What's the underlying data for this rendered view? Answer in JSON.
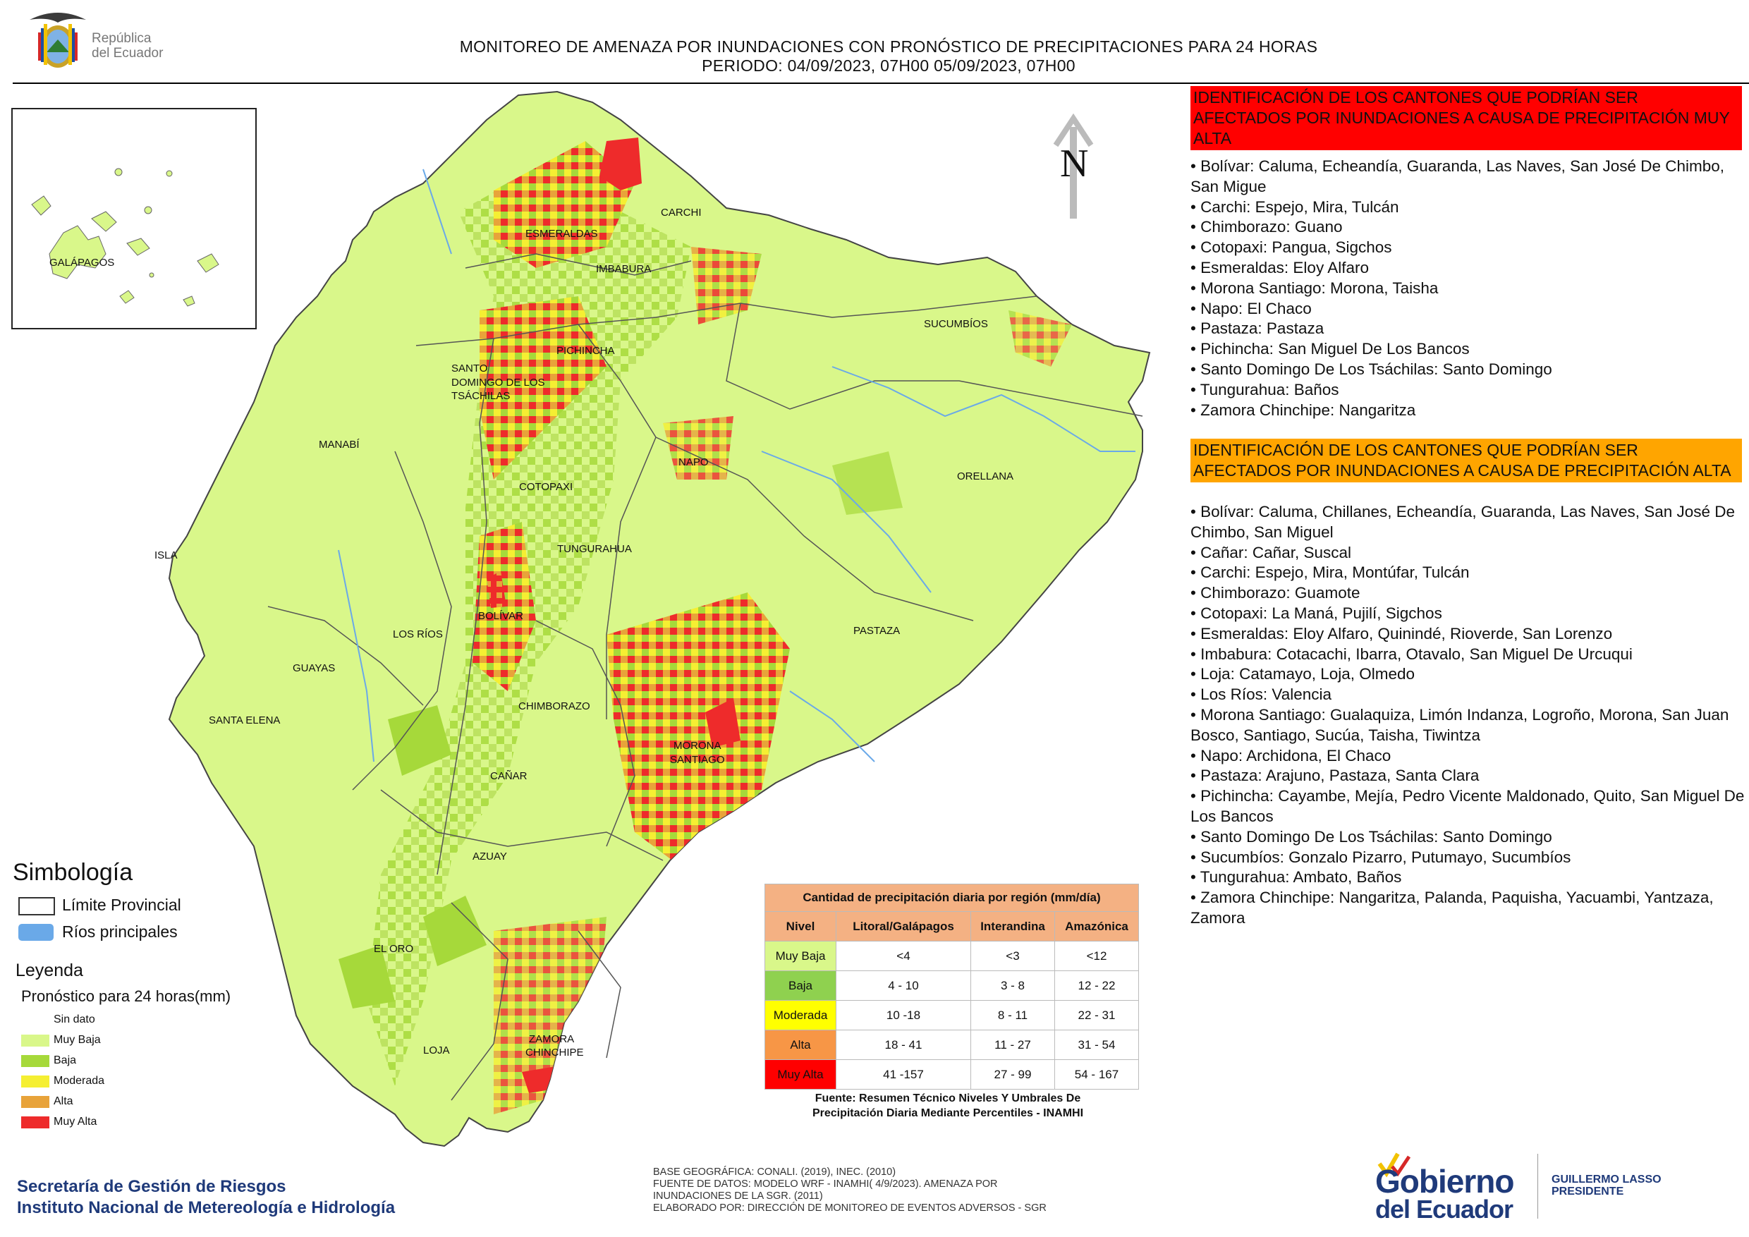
{
  "header": {
    "logo_text_line1": "República",
    "logo_text_line2": "del Ecuador",
    "title_line1": "MONITOREO DE AMENAZA POR INUNDACIONES  CON PRONÓSTICO DE  PRECIPITACIONES PARA 24 HORAS",
    "title_line2": "PERIODO: 04/09/2023, 07H00 05/09/2023, 07H00"
  },
  "map": {
    "north_label": "N",
    "inset_label": "GALÁPAGOS",
    "provinces": {
      "carchi": "CARCHI",
      "esmeraldas": "ESMERALDAS",
      "imbabura": "IMBABURA",
      "sucumbios": "SUCUMBÍOS",
      "pichincha": "PICHINCHA",
      "santo_domingo_1": "SANTO",
      "santo_domingo_2": "DOMINGO DE LOS",
      "santo_domingo_3": "TSÁCHILAS",
      "manabi": "MANABÍ",
      "napo": "NAPO",
      "orellana": "ORELLANA",
      "cotopaxi": "COTOPAXI",
      "isla": "ISLA",
      "tungurahua": "TUNGURAHUA",
      "bolivar": "BOLÍVAR",
      "los_rios": "LOS RÍOS",
      "guayas": "GUAYAS",
      "pastaza": "PASTAZA",
      "chimborazo": "CHIMBORAZO",
      "santa_elena": "SANTA ELENA",
      "morona_1": "MORONA",
      "morona_2": "SANTIAGO",
      "canar": "CAÑAR",
      "azuay": "AZUAY",
      "el_oro": "EL ORO",
      "zamora_1": "ZAMORA",
      "zamora_2": "CHINCHIPE",
      "loja": "LOJA"
    },
    "colors": {
      "muy_baja": "#d9f78a",
      "baja": "#a6d93a",
      "moderada": "#f5ef32",
      "alta": "#e8a33a",
      "muy_alta": "#ee2b2b",
      "river": "#6aa9e8",
      "border": "#555555"
    }
  },
  "simbologia": {
    "title": "Simbología",
    "limite": "Límite Provincial",
    "rios": "Ríos principales"
  },
  "leyenda": {
    "title": "Leyenda",
    "subtitle": "Pronóstico para 24 horas(mm)",
    "items": [
      "Sin dato",
      "Muy Baja",
      "Baja",
      "Moderada",
      "Alta",
      "Muy Alta"
    ],
    "colors": [
      "#ffffff",
      "#d9f78a",
      "#a6d93a",
      "#f5ef32",
      "#e8a33a",
      "#ee2b2b"
    ]
  },
  "panel_muy_alta": {
    "heading": "IDENTIFICACIÓN DE LOS CANTONES QUE PODRÍAN SER AFECTADOS POR INUNDACIONES  A CAUSA DE PRECIPITACIÓN MUY ALTA",
    "color": "#ff0000",
    "items": [
      "• Bolívar: Caluma, Echeandía, Guaranda, Las Naves, San José De Chimbo, San Migue",
      "• Carchi: Espejo, Mira, Tulcán",
      "• Chimborazo: Guano",
      "• Cotopaxi: Pangua, Sigchos",
      "• Esmeraldas: Eloy Alfaro",
      "• Morona Santiago: Morona, Taisha",
      "• Napo: El Chaco",
      "• Pastaza: Pastaza",
      "• Pichincha: San Miguel De Los Bancos",
      "• Santo Domingo De Los Tsáchilas: Santo Domingo",
      "• Tungurahua: Baños",
      "• Zamora Chinchipe: Nangaritza"
    ]
  },
  "panel_alta": {
    "heading": "IDENTIFICACIÓN DE LOS CANTONES QUE  PODRÍAN SER AFECTADOS POR INUNDACIONES  A CAUSA DE PRECIPITACIÓN ALTA",
    "color": "#ffa500",
    "items": [
      "• Bolívar: Caluma, Chillanes, Echeandía, Guaranda, Las Naves, San José De Chimbo, San Miguel",
      "• Cañar: Cañar, Suscal",
      "• Carchi: Espejo, Mira, Montúfar, Tulcán",
      "• Chimborazo: Guamote",
      "• Cotopaxi: La Maná, Pujilí, Sigchos",
      "• Esmeraldas: Eloy Alfaro, Quinindé, Rioverde, San Lorenzo",
      "• Imbabura: Cotacachi, Ibarra, Otavalo, San Miguel De Urcuqui",
      "• Loja: Catamayo, Loja, Olmedo",
      "• Los Ríos: Valencia",
      "• Morona Santiago: Gualaquiza, Limón Indanza, Logroño, Morona, San Juan Bosco, Santiago, Sucúa, Taisha, Tiwintza",
      "• Napo: Archidona, El Chaco",
      "• Pastaza: Arajuno, Pastaza, Santa Clara",
      "• Pichincha: Cayambe, Mejía, Pedro Vicente Maldonado, Quito, San Miguel De Los Bancos",
      "• Santo Domingo De Los Tsáchilas: Santo Domingo",
      "• Sucumbíos: Gonzalo Pizarro, Putumayo, Sucumbíos",
      "• Tungurahua: Ambato, Baños",
      "• Zamora Chinchipe: Nangaritza, Palanda, Paquisha, Yacuambi, Yantzaza, Zamora"
    ]
  },
  "table": {
    "title": "Cantidad de precipitación diaria por región (mm/día)",
    "headers": [
      "Nivel",
      "Litoral/Galápagos",
      "Interandina",
      "Amazónica"
    ],
    "rows": [
      {
        "nivel": "Muy Baja",
        "litoral": "<4",
        "interandina": "<3",
        "amazonica": "<12",
        "color": "#d9f78a"
      },
      {
        "nivel": "Baja",
        "litoral": "4 - 10",
        "interandina": "3 - 8",
        "amazonica": "12 - 22",
        "color": "#8fd14f"
      },
      {
        "nivel": "Moderada",
        "litoral": "10 -18",
        "interandina": "8 - 11",
        "amazonica": "22 - 31",
        "color": "#ffff00"
      },
      {
        "nivel": "Alta",
        "litoral": "18 - 41",
        "interandina": "11 - 27",
        "amazonica": "31 - 54",
        "color": "#f79646"
      },
      {
        "nivel": "Muy Alta",
        "litoral": "41 -157",
        "interandina": "27 - 99",
        "amazonica": "54 - 167",
        "color": "#ff0000"
      }
    ],
    "source_line1": "Fuente: Resumen Técnico Niveles Y Umbrales De",
    "source_line2": "Precipitación Diaria Mediante Percentiles - INAMHI"
  },
  "footer": {
    "institution_line1": "Secretaría de Gestión de Riesgos",
    "institution_line2": "Instituto Nacional de Metereología e Hidrología",
    "note_line1": "BASE GEOGRÁFICA: CONALI. (2019), INEC. (2010)",
    "note_line2": "FUENTE DE DATOS: MODELO WRF - INAMHI( 4/9/2023).  AMENAZA POR",
    "note_line3": "INUNDACIONES DE LA SGR. (2011)",
    "note_line4": "ELABORADO POR: DIRECCIÓN DE MONITOREO DE EVENTOS ADVERSOS - SGR",
    "gob_line1": "Gobierno",
    "gob_line2": "del Ecuador",
    "president_line1": "GUILLERMO LASSO",
    "president_line2": "PRESIDENTE",
    "gob_color": "#1f3a7a"
  }
}
